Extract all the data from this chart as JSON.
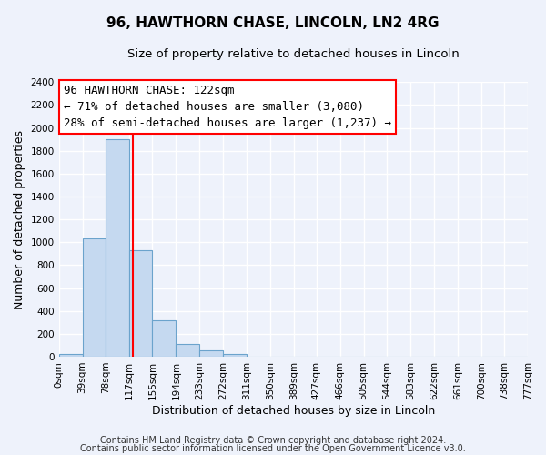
{
  "title": "96, HAWTHORN CHASE, LINCOLN, LN2 4RG",
  "subtitle": "Size of property relative to detached houses in Lincoln",
  "xlabel": "Distribution of detached houses by size in Lincoln",
  "ylabel": "Number of detached properties",
  "bar_edges": [
    0,
    39,
    78,
    117,
    155,
    194,
    233,
    272,
    311,
    350,
    389,
    427,
    466,
    505,
    544,
    583,
    622,
    661,
    700,
    738,
    777
  ],
  "bar_heights": [
    25,
    1030,
    1900,
    930,
    315,
    110,
    55,
    25,
    0,
    0,
    0,
    0,
    0,
    0,
    0,
    0,
    0,
    0,
    0,
    0
  ],
  "bar_color": "#c5d9f0",
  "bar_edge_color": "#6ba3cc",
  "property_line_x": 122,
  "property_line_color": "red",
  "annotation_line1": "96 HAWTHORN CHASE: 122sqm",
  "annotation_line2": "← 71% of detached houses are smaller (3,080)",
  "annotation_line3": "28% of semi-detached houses are larger (1,237) →",
  "annotation_box_color": "white",
  "annotation_box_edge": "red",
  "ylim": [
    0,
    2400
  ],
  "yticks": [
    0,
    200,
    400,
    600,
    800,
    1000,
    1200,
    1400,
    1600,
    1800,
    2000,
    2200,
    2400
  ],
  "xtick_labels": [
    "0sqm",
    "39sqm",
    "78sqm",
    "117sqm",
    "155sqm",
    "194sqm",
    "233sqm",
    "272sqm",
    "311sqm",
    "350sqm",
    "389sqm",
    "427sqm",
    "466sqm",
    "505sqm",
    "544sqm",
    "583sqm",
    "622sqm",
    "661sqm",
    "700sqm",
    "738sqm",
    "777sqm"
  ],
  "footer_line1": "Contains HM Land Registry data © Crown copyright and database right 2024.",
  "footer_line2": "Contains public sector information licensed under the Open Government Licence v3.0.",
  "background_color": "#eef2fb",
  "grid_color": "#ffffff",
  "title_fontsize": 11,
  "subtitle_fontsize": 9.5,
  "axis_label_fontsize": 9,
  "tick_fontsize": 7.5,
  "annotation_fontsize": 9,
  "footer_fontsize": 7
}
